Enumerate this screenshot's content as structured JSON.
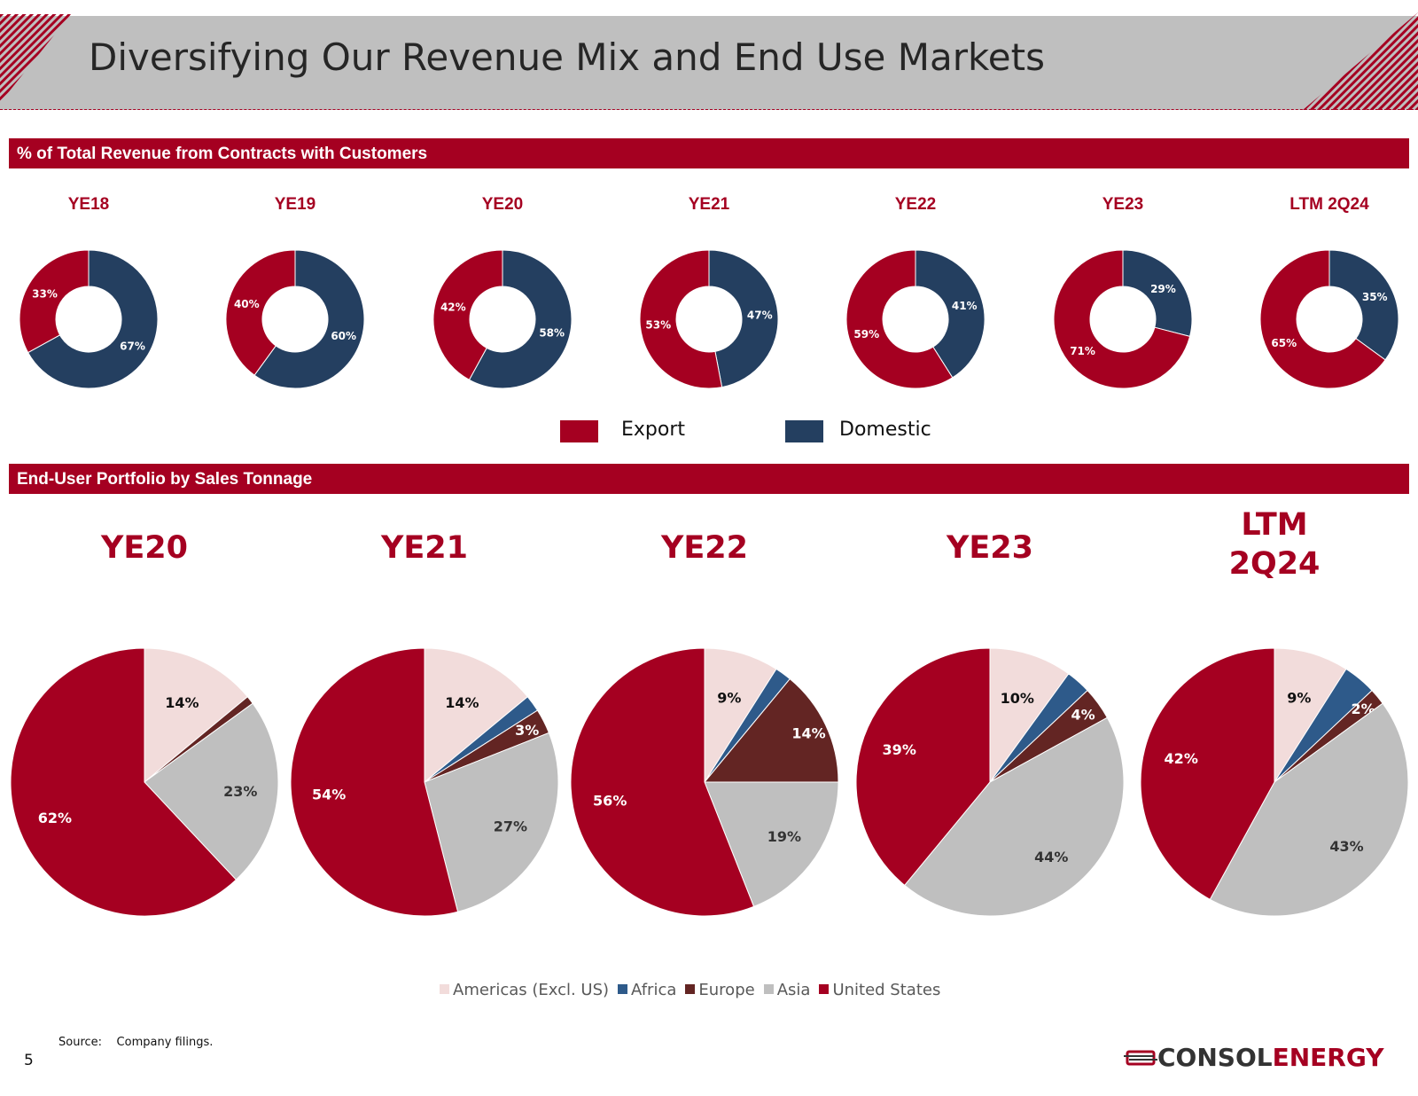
{
  "title": "Diversifying Our Revenue Mix and End Use Markets",
  "section1": {
    "title": "% of Total Revenue from Contracts with Customers"
  },
  "section2": {
    "title": "End-User Portfolio by Sales Tonnage"
  },
  "colors": {
    "export": "#a50021",
    "domestic": "#243f60",
    "americas": "#f2dcdb",
    "africa": "#2e5a8a",
    "europe": "#632523",
    "asia": "#bfbfbf",
    "united_states": "#a50021"
  },
  "legend1": {
    "export": "Export",
    "domestic": "Domestic"
  },
  "legend2": [
    "Americas (Excl. US)",
    "Africa",
    "Europe",
    "Asia",
    "United States"
  ],
  "source": "Source:    Company filings.",
  "page_number": "5",
  "logo": {
    "part1": "CONSOL",
    "part2": "ENERGY"
  },
  "chart_data": [
    {
      "type": "pie",
      "variant": "donut",
      "title": "% of Total Revenue from Contracts with Customers",
      "categories": [
        "Domestic",
        "Export"
      ],
      "charts": [
        {
          "label": "YE18",
          "values": {
            "Domestic": 67,
            "Export": 33
          }
        },
        {
          "label": "YE19",
          "values": {
            "Domestic": 60,
            "Export": 40
          }
        },
        {
          "label": "YE20",
          "values": {
            "Domestic": 58,
            "Export": 42
          }
        },
        {
          "label": "YE21",
          "values": {
            "Domestic": 47,
            "Export": 53
          }
        },
        {
          "label": "YE22",
          "values": {
            "Domestic": 41,
            "Export": 59
          }
        },
        {
          "label": "YE23",
          "values": {
            "Domestic": 29,
            "Export": 71
          }
        },
        {
          "label": "LTM 2Q24",
          "values": {
            "Domestic": 35,
            "Export": 65
          }
        }
      ]
    },
    {
      "type": "pie",
      "title": "End-User Portfolio by Sales Tonnage",
      "categories": [
        "Americas (Excl. US)",
        "Africa",
        "Europe",
        "Asia",
        "United States"
      ],
      "charts": [
        {
          "label": "YE20",
          "values": [
            14,
            0,
            1,
            23,
            62
          ],
          "shown_labels": [
            "14%",
            "",
            "",
            "23%",
            "62%"
          ]
        },
        {
          "label": "YE21",
          "values": [
            14,
            2,
            3,
            27,
            54
          ],
          "shown_labels": [
            "14%",
            "",
            "3%",
            "27%",
            "54%"
          ]
        },
        {
          "label": "YE22",
          "values": [
            9,
            2,
            14,
            19,
            56
          ],
          "shown_labels": [
            "9%",
            "",
            "14%",
            "19%",
            "56%"
          ]
        },
        {
          "label": "YE23",
          "values": [
            10,
            3,
            4,
            44,
            39
          ],
          "shown_labels": [
            "10%",
            "",
            "4%",
            "44%",
            "39%"
          ]
        },
        {
          "label": "LTM 2Q24",
          "values": [
            9,
            4,
            2,
            43,
            42
          ],
          "shown_labels": [
            "9%",
            "",
            "2%",
            "43%",
            "42%"
          ]
        }
      ]
    }
  ]
}
